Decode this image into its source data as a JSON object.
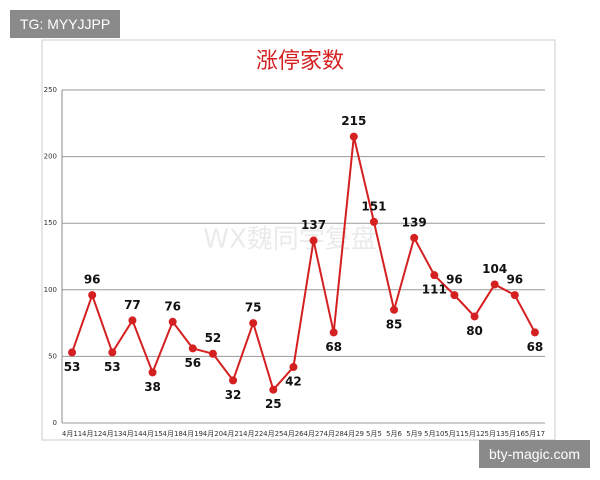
{
  "overlay": {
    "tag": "TG: MYYJJPP",
    "site": "bty-magic.com",
    "watermark": "WX魏同学复盘"
  },
  "chart_data": {
    "type": "line",
    "title": "涨停家数",
    "categories": [
      "4月11",
      "4月12",
      "4月13",
      "4月14",
      "4月15",
      "4月18",
      "4月19",
      "4月20",
      "4月21",
      "4月22",
      "4月25",
      "4月26",
      "4月27",
      "4月28",
      "4月29",
      "5月5",
      "5月6",
      "5月9",
      "5月10",
      "5月11",
      "5月12",
      "5月13",
      "5月16",
      "5月17"
    ],
    "values": [
      53,
      96,
      53,
      77,
      38,
      76,
      56,
      52,
      32,
      75,
      25,
      42,
      137,
      68,
      215,
      151,
      85,
      139,
      111,
      96,
      80,
      104,
      96,
      68
    ],
    "color": "#d42020",
    "ylim": [
      0,
      250
    ],
    "yticks": [
      0,
      50,
      100,
      150,
      200,
      250
    ],
    "grid": true
  }
}
